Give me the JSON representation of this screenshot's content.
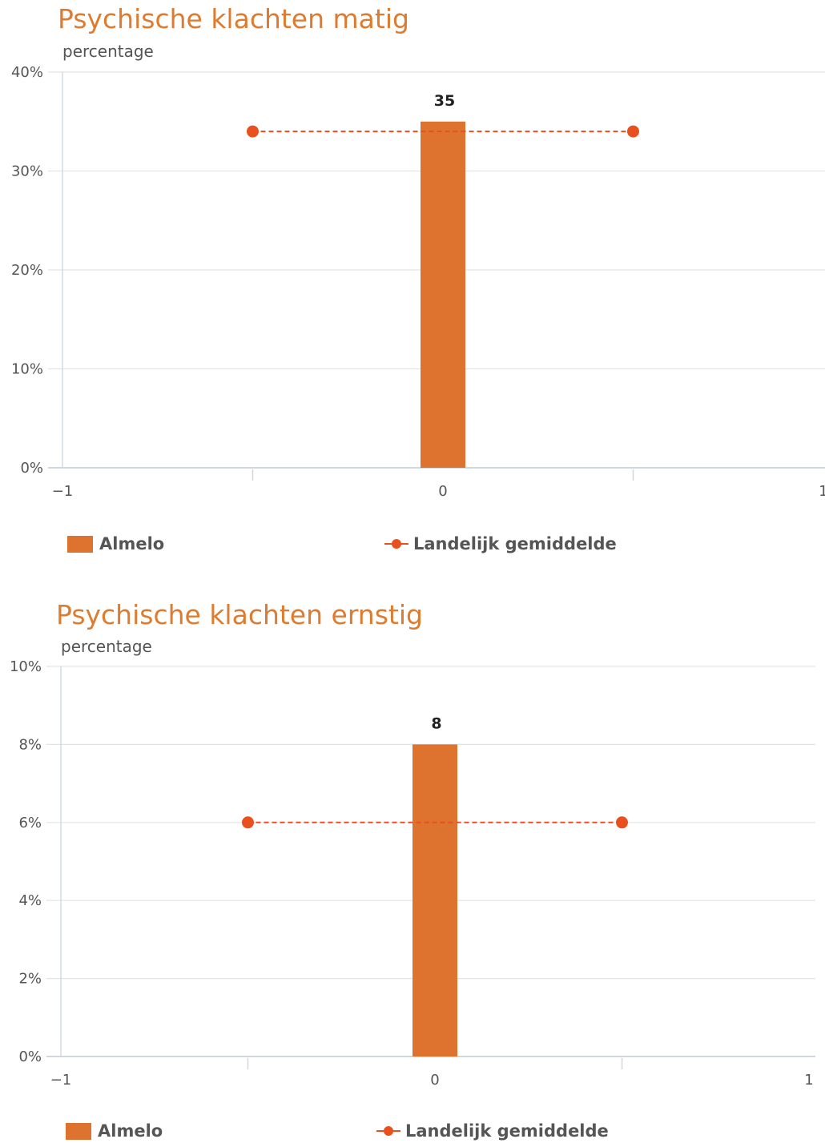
{
  "colors": {
    "bar": "#de7330",
    "average": "#e8501e",
    "title": "#de7b2f",
    "grid": "#e3e3e3",
    "axis": "#c7d3de"
  },
  "chart_data": [
    {
      "type": "bar",
      "title": "Psychische klachten matig",
      "ylabel": "percentage",
      "xlabel": "",
      "x_ticks": [
        "−1",
        "0",
        "1"
      ],
      "y_ticks": [
        "0%",
        "10%",
        "20%",
        "30%",
        "40%"
      ],
      "ylim": [
        0,
        40
      ],
      "xlim": [
        -1,
        1
      ],
      "series": [
        {
          "name": "Almelo",
          "kind": "bar",
          "x": [
            0
          ],
          "values": [
            35
          ],
          "labels": [
            "35"
          ]
        },
        {
          "name": "Landelijk gemiddelde",
          "kind": "line",
          "x": [
            -0.5,
            0.5
          ],
          "values": [
            34,
            34
          ]
        }
      ],
      "legend": [
        "Almelo",
        "Landelijk gemiddelde"
      ],
      "grid": true,
      "legend_position": "bottom"
    },
    {
      "type": "bar",
      "title": "Psychische klachten ernstig",
      "ylabel": "percentage",
      "xlabel": "",
      "x_ticks": [
        "−1",
        "0",
        "1"
      ],
      "y_ticks": [
        "0%",
        "2%",
        "4%",
        "6%",
        "8%",
        "10%"
      ],
      "ylim": [
        0,
        10
      ],
      "xlim": [
        -1,
        1
      ],
      "series": [
        {
          "name": "Almelo",
          "kind": "bar",
          "x": [
            0
          ],
          "values": [
            8
          ],
          "labels": [
            "8"
          ]
        },
        {
          "name": "Landelijk gemiddelde",
          "kind": "line",
          "x": [
            -0.5,
            0.5
          ],
          "values": [
            6,
            6
          ]
        }
      ],
      "legend": [
        "Almelo",
        "Landelijk gemiddelde"
      ],
      "grid": true,
      "legend_position": "bottom"
    }
  ]
}
